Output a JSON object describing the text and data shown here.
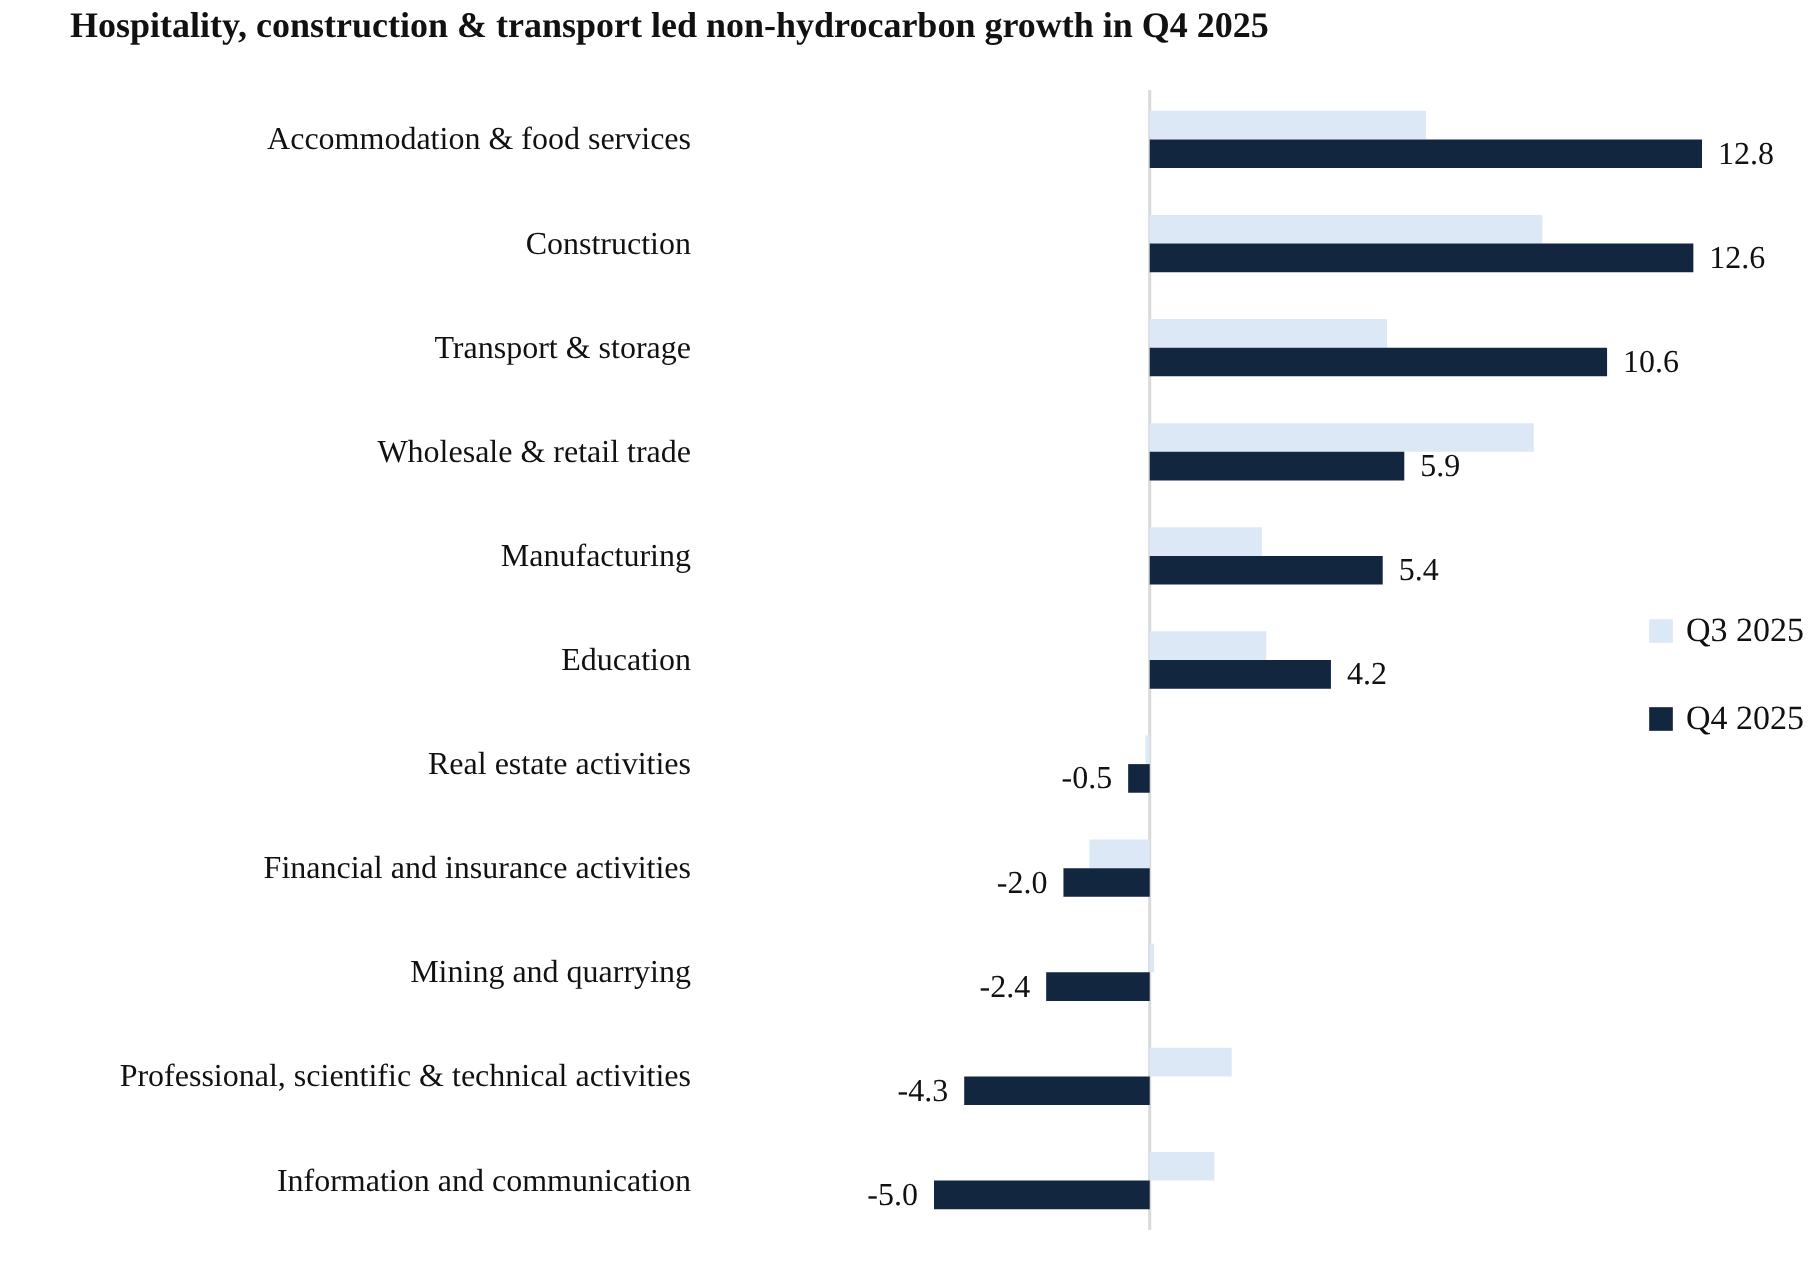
{
  "chart_data": {
    "type": "bar",
    "orientation": "horizontal",
    "title": "Hospitality, construction & transport led non-hydrocarbon growth in Q4 2025",
    "categories": [
      "Accommodation & food services",
      "Construction",
      "Transport & storage",
      "Wholesale & retail trade",
      "Manufacturing",
      "Education ",
      "Real estate activities",
      "Financial and insurance activities",
      "Mining and quarrying",
      "Professional, scientific & technical activities",
      "Information and communication"
    ],
    "series": [
      {
        "name": "Q3 2025",
        "color": "#dce8f5",
        "values": [
          6.4,
          9.1,
          5.5,
          8.9,
          2.6,
          2.7,
          -0.1,
          -1.4,
          0.1,
          1.9,
          1.5
        ]
      },
      {
        "name": "Q4 2025",
        "color": "#12263f",
        "values": [
          12.8,
          12.6,
          10.6,
          5.9,
          5.4,
          4.2,
          -0.5,
          -2.0,
          -2.4,
          -4.3,
          -5.0
        ],
        "value_labels": [
          "12.8",
          "12.6",
          "10.6",
          "5.9",
          "5.4",
          "4.2",
          "-0.5",
          "-2.0",
          "-2.4",
          "-4.3",
          "-5.0"
        ]
      }
    ],
    "tick_labels": "y",
    "legend": "right"
  }
}
